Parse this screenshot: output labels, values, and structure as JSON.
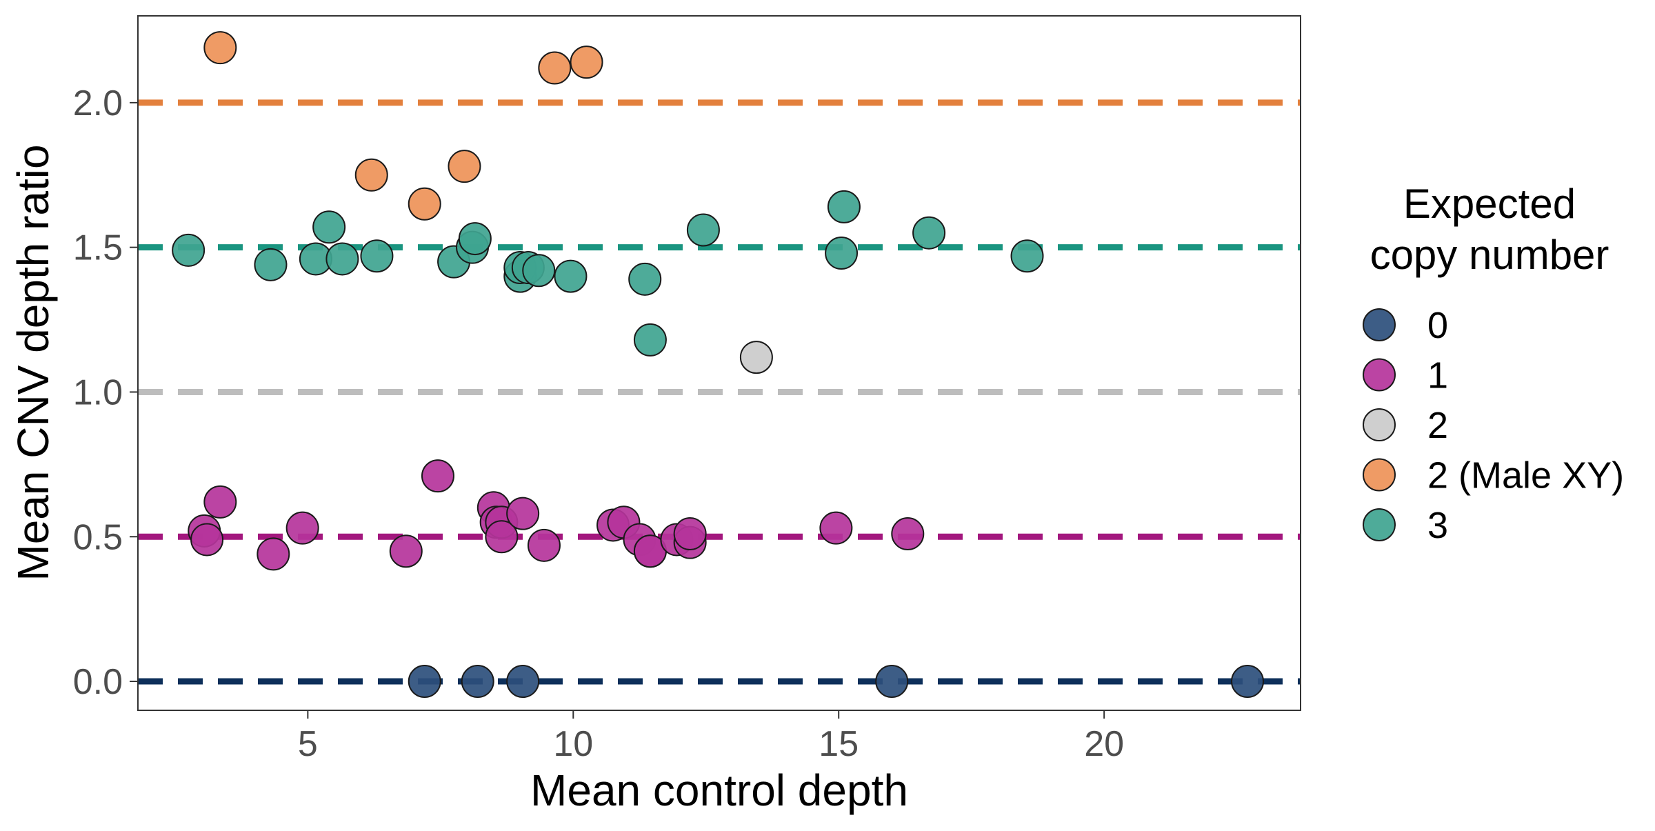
{
  "chart_data": {
    "type": "scatter",
    "title": "",
    "xlabel": "Mean control depth",
    "ylabel": "Mean CNV depth ratio",
    "xlim": [
      1.8,
      23.7
    ],
    "ylim": [
      -0.1,
      2.3
    ],
    "x_ticks": [
      5,
      10,
      15,
      20
    ],
    "y_ticks": [
      0.0,
      0.5,
      1.0,
      1.5,
      2.0
    ],
    "y_tick_labels": [
      "0.0",
      "0.5",
      "1.0",
      "1.5",
      "2.0"
    ],
    "grid": false,
    "legend": {
      "title_lines": [
        "Expected",
        "copy number"
      ],
      "position": "right"
    },
    "reference_lines": [
      {
        "y": 2.0,
        "color": "#E3803D"
      },
      {
        "y": 1.5,
        "color": "#1A9580"
      },
      {
        "y": 1.0,
        "color": "#BDBDBD"
      },
      {
        "y": 0.5,
        "color": "#A3177E"
      },
      {
        "y": 0.0,
        "color": "#0D2F5A"
      }
    ],
    "series": [
      {
        "name": "0",
        "color": "#2D4F7C",
        "points": [
          [
            7.2,
            0.0
          ],
          [
            8.2,
            0.0
          ],
          [
            9.05,
            0.0
          ],
          [
            16.0,
            0.0
          ],
          [
            22.7,
            0.0
          ]
        ]
      },
      {
        "name": "1",
        "color": "#B5349B",
        "points": [
          [
            3.05,
            0.52
          ],
          [
            3.1,
            0.49
          ],
          [
            3.35,
            0.62
          ],
          [
            4.35,
            0.44
          ],
          [
            4.9,
            0.53
          ],
          [
            6.85,
            0.45
          ],
          [
            7.45,
            0.71
          ],
          [
            8.5,
            0.6
          ],
          [
            8.55,
            0.55
          ],
          [
            8.65,
            0.55
          ],
          [
            8.65,
            0.5
          ],
          [
            9.05,
            0.58
          ],
          [
            9.45,
            0.47
          ],
          [
            10.75,
            0.54
          ],
          [
            10.95,
            0.55
          ],
          [
            11.25,
            0.49
          ],
          [
            11.45,
            0.45
          ],
          [
            11.45,
            0.45
          ],
          [
            11.95,
            0.49
          ],
          [
            12.2,
            0.48
          ],
          [
            12.2,
            0.51
          ],
          [
            14.95,
            0.53
          ],
          [
            16.3,
            0.51
          ]
        ]
      },
      {
        "name": "2",
        "color": "#CBCBCB",
        "points": [
          [
            13.45,
            1.12
          ]
        ]
      },
      {
        "name": "2 (Male XY)",
        "color": "#EE9358",
        "points": [
          [
            3.35,
            2.19
          ],
          [
            6.2,
            1.75
          ],
          [
            7.2,
            1.65
          ],
          [
            7.95,
            1.78
          ],
          [
            9.65,
            2.12
          ],
          [
            10.25,
            2.14
          ]
        ]
      },
      {
        "name": "3",
        "color": "#3FA490",
        "points": [
          [
            2.75,
            1.49
          ],
          [
            4.3,
            1.44
          ],
          [
            5.15,
            1.46
          ],
          [
            5.4,
            1.57
          ],
          [
            5.65,
            1.46
          ],
          [
            6.3,
            1.47
          ],
          [
            7.75,
            1.45
          ],
          [
            8.1,
            1.5
          ],
          [
            8.15,
            1.53
          ],
          [
            9.0,
            1.4
          ],
          [
            9.0,
            1.43
          ],
          [
            9.15,
            1.43
          ],
          [
            9.35,
            1.42
          ],
          [
            9.95,
            1.4
          ],
          [
            11.35,
            1.39
          ],
          [
            11.45,
            1.18
          ],
          [
            12.45,
            1.56
          ],
          [
            15.05,
            1.48
          ],
          [
            15.1,
            1.64
          ],
          [
            16.7,
            1.55
          ],
          [
            18.55,
            1.47
          ]
        ]
      }
    ]
  }
}
